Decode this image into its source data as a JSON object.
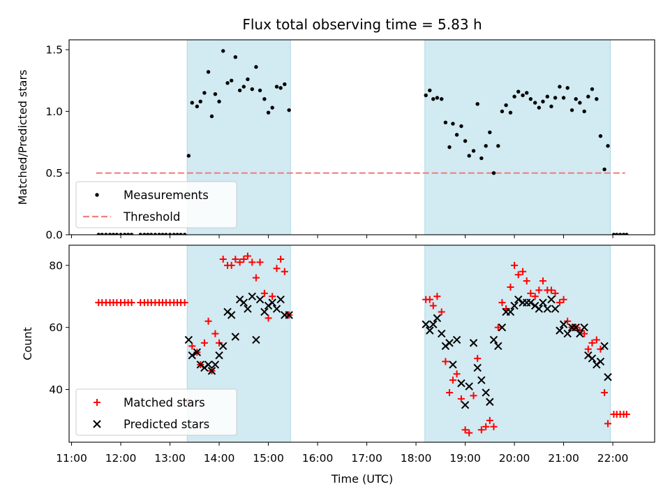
{
  "chart_data": {
    "type": "scatter",
    "title": "Flux total observing time = 5.83 h",
    "xlabel": "Time (UTC)",
    "xlim": [
      10.95,
      22.85
    ],
    "x_ticks": [
      "11:00",
      "12:00",
      "13:00",
      "14:00",
      "15:00",
      "16:00",
      "17:00",
      "18:00",
      "19:00",
      "20:00",
      "21:00",
      "22:00"
    ],
    "x_tick_values": [
      11,
      12,
      13,
      14,
      15,
      16,
      17,
      18,
      19,
      20,
      21,
      22
    ],
    "shaded_intervals": [
      [
        13.35,
        15.45
      ],
      [
        18.18,
        21.95
      ]
    ],
    "shade_color": "#add8e6",
    "panels": [
      {
        "ylabel": "Matched/Predicted stars",
        "ylim": [
          0,
          1.58
        ],
        "y_ticks": [
          "0.0",
          "0.5",
          "1.0",
          "1.5"
        ],
        "y_tick_values": [
          0,
          0.5,
          1.0,
          1.5
        ],
        "threshold": {
          "value": 0.5,
          "x_range": [
            11.5,
            22.25
          ],
          "color": "#f08080"
        },
        "legend": [
          "Measurements",
          "Threshold"
        ],
        "series": [
          {
            "name": "Measurements",
            "marker": "dot",
            "color": "#000000",
            "x": [
              11.55,
              11.62,
              11.7,
              11.78,
              11.85,
              11.92,
              12.0,
              12.08,
              12.15,
              12.22,
              12.4,
              12.48,
              12.55,
              12.62,
              12.7,
              12.78,
              12.85,
              12.92,
              13.0,
              13.08,
              13.15,
              13.22,
              13.3,
              13.38,
              13.45,
              13.55,
              13.62,
              13.7,
              13.78,
              13.85,
              13.92,
              14.0,
              14.08,
              14.17,
              14.25,
              14.33,
              14.42,
              14.5,
              14.58,
              14.67,
              14.75,
              14.83,
              14.92,
              15.0,
              15.08,
              15.17,
              15.25,
              15.33,
              15.42,
              18.2,
              18.28,
              18.35,
              18.43,
              18.52,
              18.6,
              18.68,
              18.75,
              18.83,
              18.92,
              19.0,
              19.08,
              19.17,
              19.25,
              19.33,
              19.42,
              19.5,
              19.58,
              19.67,
              19.75,
              19.83,
              19.92,
              20.0,
              20.08,
              20.17,
              20.25,
              20.33,
              20.42,
              20.5,
              20.58,
              20.67,
              20.75,
              20.83,
              20.92,
              21.0,
              21.08,
              21.17,
              21.25,
              21.33,
              21.42,
              21.5,
              21.58,
              21.67,
              21.75,
              21.83,
              21.9,
              22.02,
              22.08,
              22.15,
              22.22,
              22.28
            ],
            "y": [
              0,
              0,
              0,
              0,
              0,
              0,
              0,
              0,
              0,
              0,
              0,
              0,
              0,
              0,
              0,
              0,
              0,
              0,
              0,
              0,
              0,
              0,
              0,
              0.64,
              1.07,
              1.04,
              1.08,
              1.15,
              1.32,
              0.96,
              1.14,
              1.08,
              1.49,
              1.23,
              1.25,
              1.44,
              1.17,
              1.2,
              1.26,
              1.18,
              1.36,
              1.17,
              1.1,
              0.99,
              1.03,
              1.2,
              1.19,
              1.22,
              1.01,
              1.13,
              1.17,
              1.1,
              1.11,
              1.1,
              0.91,
              0.71,
              0.9,
              0.81,
              0.88,
              0.76,
              0.64,
              0.68,
              1.06,
              0.62,
              0.72,
              0.83,
              0.5,
              0.72,
              1.0,
              1.05,
              0.99,
              1.12,
              1.16,
              1.13,
              1.15,
              1.1,
              1.07,
              1.03,
              1.08,
              1.12,
              1.04,
              1.11,
              1.2,
              1.11,
              1.19,
              1.01,
              1.1,
              1.07,
              1.0,
              1.12,
              1.18,
              1.1,
              0.8,
              0.53,
              0.72,
              0,
              0,
              0,
              0,
              0
            ]
          },
          {
            "name": "Threshold",
            "marker": "dashed-line",
            "color": "#f08080"
          }
        ]
      },
      {
        "ylabel": "Count",
        "ylim": [
          23,
          86.5
        ],
        "y_ticks": [
          "40",
          "60",
          "80"
        ],
        "y_tick_values": [
          40,
          60,
          80
        ],
        "legend": [
          "Matched stars",
          "Predicted stars"
        ],
        "series": [
          {
            "name": "Matched stars",
            "marker": "plus",
            "color": "#ff0000",
            "x": [
              11.55,
              11.62,
              11.7,
              11.78,
              11.85,
              11.92,
              12.0,
              12.08,
              12.15,
              12.22,
              12.4,
              12.48,
              12.55,
              12.62,
              12.7,
              12.78,
              12.85,
              12.92,
              13.0,
              13.08,
              13.15,
              13.22,
              13.3,
              13.38,
              13.45,
              13.55,
              13.62,
              13.7,
              13.78,
              13.85,
              13.92,
              14.0,
              14.08,
              14.17,
              14.25,
              14.33,
              14.42,
              14.5,
              14.58,
              14.67,
              14.75,
              14.83,
              14.92,
              15.0,
              15.08,
              15.17,
              15.25,
              15.33,
              15.42,
              18.2,
              18.28,
              18.35,
              18.43,
              18.52,
              18.6,
              18.68,
              18.75,
              18.83,
              18.92,
              19.0,
              19.08,
              19.17,
              19.25,
              19.33,
              19.42,
              19.5,
              19.58,
              19.67,
              19.75,
              19.83,
              19.92,
              20.0,
              20.08,
              20.17,
              20.25,
              20.33,
              20.42,
              20.5,
              20.58,
              20.67,
              20.75,
              20.83,
              20.92,
              21.0,
              21.08,
              21.17,
              21.25,
              21.33,
              21.42,
              21.5,
              21.58,
              21.67,
              21.75,
              21.83,
              21.9,
              22.02,
              22.08,
              22.15,
              22.22,
              22.28
            ],
            "y": [
              68,
              68,
              68,
              68,
              68,
              68,
              68,
              68,
              68,
              68,
              68,
              68,
              68,
              68,
              68,
              68,
              68,
              68,
              68,
              68,
              68,
              68,
              68,
              36,
              54,
              52,
              48,
              55,
              62,
              46,
              58,
              55,
              82,
              80,
              80,
              82,
              81,
              82,
              83,
              81,
              76,
              81,
              71,
              63,
              70,
              79,
              82,
              78,
              64,
              69,
              69,
              67,
              70,
              65,
              49,
              39,
              43,
              45,
              37,
              27,
              26,
              38,
              50,
              27,
              28,
              30,
              28,
              60,
              68,
              66,
              73,
              80,
              77,
              78,
              75,
              71,
              70,
              72,
              75,
              72,
              72,
              71,
              68,
              69,
              62,
              60,
              60,
              59,
              58,
              53,
              55,
              56,
              53,
              39,
              29,
              32,
              32,
              32,
              32,
              32
            ]
          },
          {
            "name": "Predicted stars",
            "marker": "x",
            "color": "#000000",
            "x": [
              13.38,
              13.45,
              13.55,
              13.62,
              13.7,
              13.78,
              13.85,
              13.92,
              14.0,
              14.08,
              14.17,
              14.25,
              14.33,
              14.42,
              14.5,
              14.58,
              14.67,
              14.75,
              14.83,
              14.92,
              15.0,
              15.08,
              15.17,
              15.25,
              15.33,
              15.42,
              18.2,
              18.28,
              18.35,
              18.43,
              18.52,
              18.6,
              18.68,
              18.75,
              18.83,
              18.92,
              19.0,
              19.08,
              19.17,
              19.25,
              19.33,
              19.42,
              19.5,
              19.58,
              19.67,
              19.75,
              19.83,
              19.92,
              20.0,
              20.08,
              20.17,
              20.25,
              20.33,
              20.42,
              20.5,
              20.58,
              20.67,
              20.75,
              20.83,
              20.92,
              21.0,
              21.08,
              21.17,
              21.25,
              21.33,
              21.42,
              21.5,
              21.58,
              21.67,
              21.75,
              21.83,
              21.9
            ],
            "y": [
              56,
              51,
              52,
              48,
              47,
              48,
              46,
              48,
              51,
              54,
              65,
              64,
              57,
              69,
              68,
              66,
              70,
              56,
              69,
              65,
              67,
              68,
              66,
              69,
              64,
              64,
              61,
              59,
              61,
              63,
              58,
              54,
              55,
              48,
              56,
              42,
              35,
              41,
              55,
              47,
              43,
              39,
              36,
              56,
              54,
              60,
              65,
              65,
              67,
              69,
              68,
              68,
              68,
              67,
              66,
              68,
              66,
              69,
              66,
              59,
              61,
              58,
              60,
              60,
              58,
              60,
              51,
              50,
              48,
              49,
              54,
              44
            ]
          }
        ]
      }
    ]
  }
}
